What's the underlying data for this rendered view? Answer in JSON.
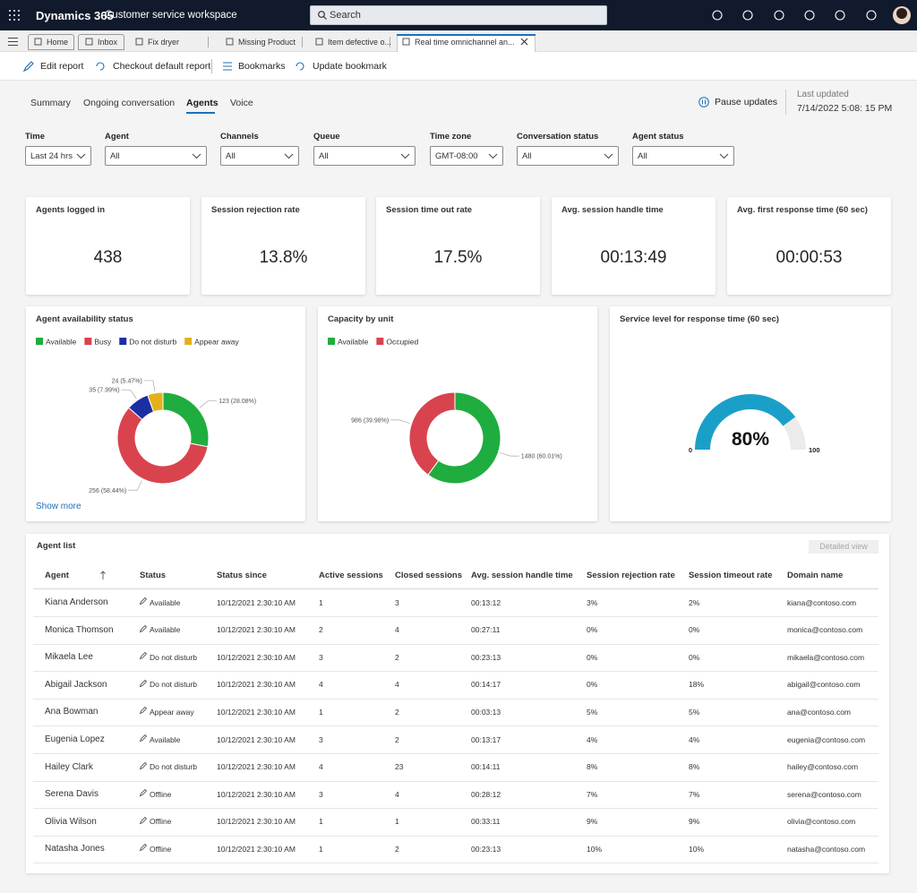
{
  "header": {
    "app": "Dynamics 365",
    "workspace": "Customer service workspace",
    "search": "Search"
  },
  "tabs": [
    "Home",
    "Inbox",
    "Fix dryer",
    "Missing Product",
    "Item defective o...",
    "Real time omnichannel an..."
  ],
  "toolbar": [
    "Edit report",
    "Checkout default report",
    "Bookmarks",
    "Update bookmark"
  ],
  "nav": [
    "Summary",
    "Ongoing conversation",
    "Agents",
    "Voice"
  ],
  "pause": "Pause updates",
  "last_updated_label": "Last updated",
  "last_updated": "7/14/2022 5:08: 15 PM",
  "filters": [
    {
      "label": "Time",
      "value": "Last 24 hrs"
    },
    {
      "label": "Agent",
      "value": "All"
    },
    {
      "label": "Channels",
      "value": "All"
    },
    {
      "label": "Queue",
      "value": "All"
    },
    {
      "label": "Time zone",
      "value": "GMT-08:00"
    },
    {
      "label": "Conversation status",
      "value": "All"
    },
    {
      "label": "Agent status",
      "value": "All"
    }
  ],
  "kpis": [
    {
      "label": "Agents logged in",
      "value": "438"
    },
    {
      "label": "Session rejection rate",
      "value": "13.8%"
    },
    {
      "label": "Session time out rate",
      "value": "17.5%"
    },
    {
      "label": "Avg. session handle time",
      "value": "00:13:49"
    },
    {
      "label": "Avg. first response time (60 sec)",
      "value": "00:00:53"
    }
  ],
  "chart_data": [
    {
      "type": "donut",
      "title": "Agent availability status",
      "categories": [
        "Available",
        "Busy",
        "Do not disturb",
        "Appear away"
      ],
      "values": [
        123,
        256,
        35,
        24
      ],
      "value_labels": [
        "123 (28.08%)",
        "256 (58.44%)",
        "35 (7.99%)",
        "24 (5.47%)"
      ],
      "colors": [
        "#1fad3f",
        "#d9434e",
        "#1b2fa3",
        "#e3b21a"
      ]
    },
    {
      "type": "donut",
      "title": "Capacity by unit",
      "categories": [
        "Available",
        "Occupied"
      ],
      "values": [
        1480,
        986
      ],
      "value_labels": [
        "1480 (60.01%)",
        "986 (39.98%)"
      ],
      "colors": [
        "#1fad3f",
        "#d9434e"
      ]
    },
    {
      "type": "gauge",
      "title": "Service level for response time (60 sec)",
      "value": 80,
      "value_label": "80%",
      "ylim": [
        0,
        100
      ],
      "yticks": [
        0,
        100
      ],
      "color": "#1aa0c8"
    }
  ],
  "show_more": "Show more",
  "agent_list": {
    "title": "Agent list",
    "button": "Detailed view",
    "columns": [
      "Agent",
      "Status",
      "Status since",
      "Active sessions",
      "Closed sessions",
      "Avg. session handle time",
      "Session rejection rate",
      "Session timeout rate",
      "Domain name"
    ],
    "rows": [
      [
        "Kiana Anderson",
        "Available",
        "10/12/2021 2:30:10 AM",
        "1",
        "3",
        "00:13:12",
        "3%",
        "2%",
        "kiana@contoso.com"
      ],
      [
        "Monica Thomson",
        "Available",
        "10/12/2021 2:30:10 AM",
        "2",
        "4",
        "00:27:11",
        "0%",
        "0%",
        "monica@contoso.com"
      ],
      [
        "Mikaela Lee",
        "Do not disturb",
        "10/12/2021 2:30:10 AM",
        "3",
        "2",
        "00:23:13",
        "0%",
        "0%",
        "mikaela@contoso.com"
      ],
      [
        "Abigail Jackson",
        "Do not disturb",
        "10/12/2021 2:30:10 AM",
        "4",
        "4",
        "00:14:17",
        "0%",
        "18%",
        "abigail@contoso.com"
      ],
      [
        "Ana Bowman",
        "Appear away",
        "10/12/2021 2:30:10 AM",
        "1",
        "2",
        "00:03:13",
        "5%",
        "5%",
        "ana@contoso.com"
      ],
      [
        "Eugenia Lopez",
        "Available",
        "10/12/2021 2:30:10 AM",
        "3",
        "2",
        "00:13:17",
        "4%",
        "4%",
        "eugenia@contoso.com"
      ],
      [
        "Hailey Clark",
        "Do not disturb",
        "10/12/2021 2:30:10 AM",
        "4",
        "23",
        "00:14:11",
        "8%",
        "8%",
        "hailey@contoso.com"
      ],
      [
        "Serena Davis",
        "Offline",
        "10/12/2021 2:30:10 AM",
        "3",
        "4",
        "00:28:12",
        "7%",
        "7%",
        "serena@contoso.com"
      ],
      [
        "Olivia Wilson",
        "Offline",
        "10/12/2021 2:30:10 AM",
        "1",
        "1",
        "00:33:11",
        "9%",
        "9%",
        "olivia@contoso.com"
      ],
      [
        "Natasha Jones",
        "Offline",
        "10/12/2021 2:30:10 AM",
        "1",
        "2",
        "00:23:13",
        "10%",
        "10%",
        "natasha@contoso.com"
      ]
    ]
  }
}
